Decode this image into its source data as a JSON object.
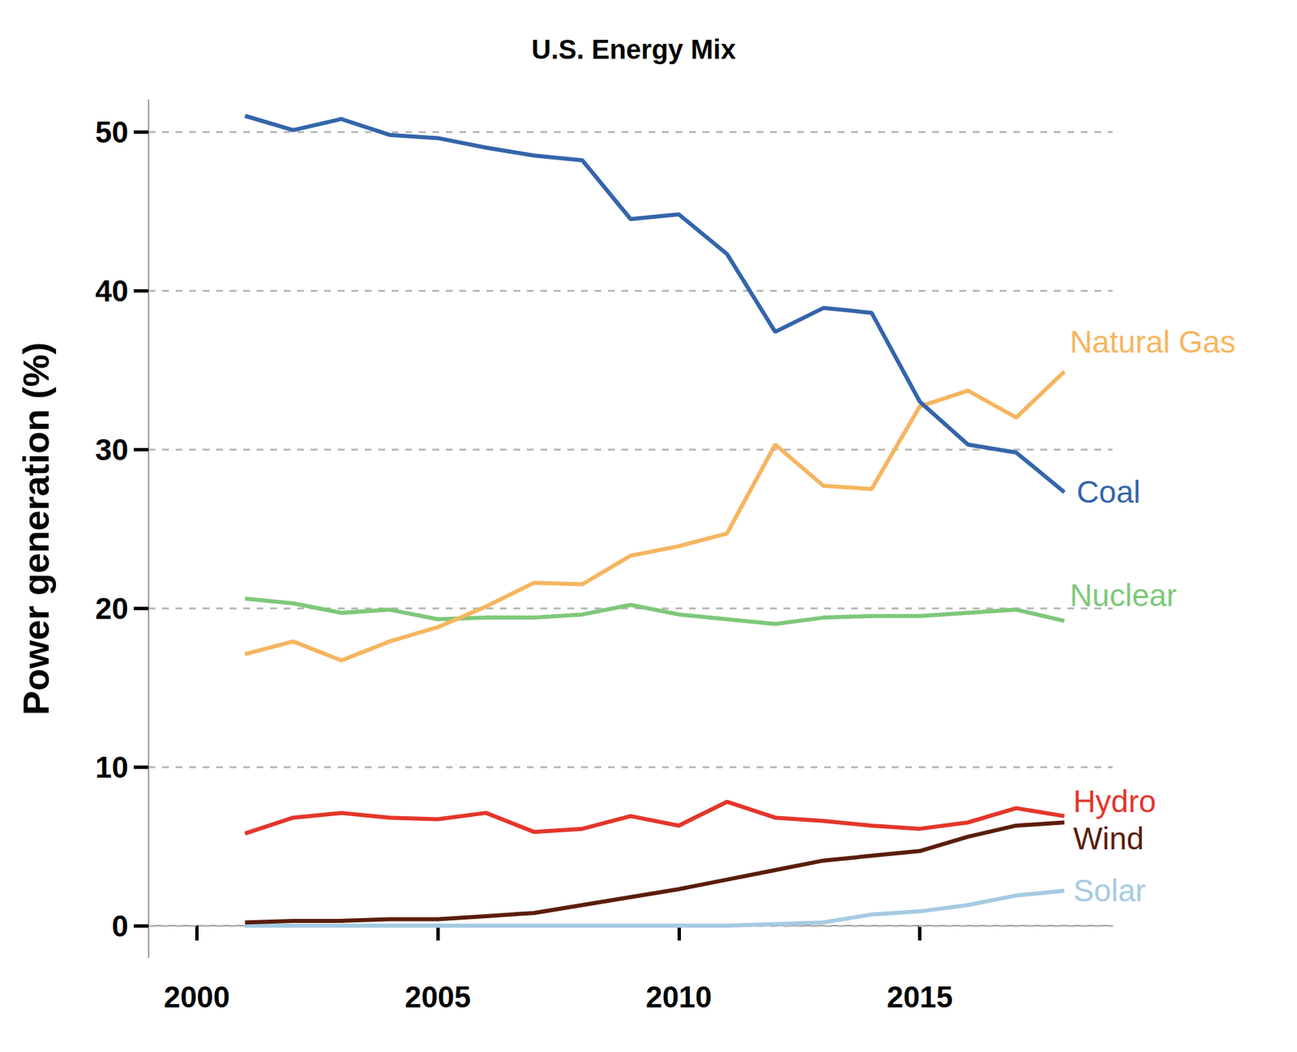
{
  "chart_data": {
    "type": "line",
    "title": "U.S. Energy Mix",
    "y_label": "Power generation (%)",
    "x": [
      2001,
      2002,
      2003,
      2004,
      2005,
      2006,
      2007,
      2008,
      2009,
      2010,
      2011,
      2012,
      2013,
      2014,
      2015,
      2016,
      2017,
      2018
    ],
    "xlim": [
      1999,
      2019
    ],
    "xticks": [
      2000,
      2005,
      2010,
      2015
    ],
    "ylim": [
      -2,
      52
    ],
    "yticks": [
      0,
      10,
      20,
      30,
      40,
      50
    ],
    "grid": true,
    "series": [
      {
        "name": "Coal",
        "color": "#3465aa",
        "values": [
          51.0,
          50.1,
          50.8,
          49.8,
          49.6,
          49.0,
          48.5,
          48.2,
          44.5,
          44.8,
          42.3,
          37.4,
          38.9,
          38.6,
          33.0,
          30.3,
          29.8,
          27.3
        ]
      },
      {
        "name": "Natural Gas",
        "color": "#f6b560",
        "values": [
          17.1,
          17.9,
          16.7,
          17.9,
          18.8,
          20.1,
          21.6,
          21.5,
          23.3,
          23.9,
          24.7,
          30.3,
          27.7,
          27.5,
          32.7,
          33.7,
          32.0,
          34.9
        ]
      },
      {
        "name": "Nuclear",
        "color": "#7ec87a",
        "values": [
          20.6,
          20.3,
          19.7,
          19.9,
          19.3,
          19.4,
          19.4,
          19.6,
          20.2,
          19.6,
          19.3,
          19.0,
          19.4,
          19.5,
          19.5,
          19.7,
          19.9,
          19.2
        ]
      },
      {
        "name": "Hydro",
        "color": "#e4362a",
        "values": [
          5.8,
          6.8,
          7.1,
          6.8,
          6.7,
          7.1,
          5.9,
          6.1,
          6.9,
          6.3,
          7.8,
          6.8,
          6.6,
          6.3,
          6.1,
          6.5,
          7.4,
          6.9
        ]
      },
      {
        "name": "Wind",
        "color": "#5a1d0a",
        "values": [
          0.2,
          0.3,
          0.3,
          0.4,
          0.4,
          0.6,
          0.8,
          1.3,
          1.8,
          2.3,
          2.9,
          3.5,
          4.1,
          4.4,
          4.7,
          5.6,
          6.3,
          6.5
        ]
      },
      {
        "name": "Solar",
        "color": "#a5cbe1",
        "values": [
          0,
          0,
          0,
          0,
          0,
          0,
          0,
          0,
          0,
          0,
          0,
          0.1,
          0.2,
          0.7,
          0.9,
          1.3,
          1.9,
          2.2
        ]
      }
    ]
  }
}
